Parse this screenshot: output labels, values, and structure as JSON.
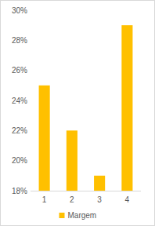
{
  "chart_data": {
    "type": "bar",
    "categories": [
      "1",
      "2",
      "3",
      "4"
    ],
    "series": [
      {
        "name": "Margem",
        "color": "#ffc000",
        "values": [
          25,
          22,
          19,
          29
        ]
      }
    ],
    "ylim": [
      18,
      30
    ],
    "yticks": [
      {
        "value": 18,
        "label": "18%"
      },
      {
        "value": 20,
        "label": "20%"
      },
      {
        "value": 22,
        "label": "22%"
      },
      {
        "value": 24,
        "label": "24%"
      },
      {
        "value": 26,
        "label": "26%"
      },
      {
        "value": 28,
        "label": "28%"
      },
      {
        "value": 30,
        "label": "30%"
      }
    ],
    "grid": false,
    "legend": "bottom"
  }
}
